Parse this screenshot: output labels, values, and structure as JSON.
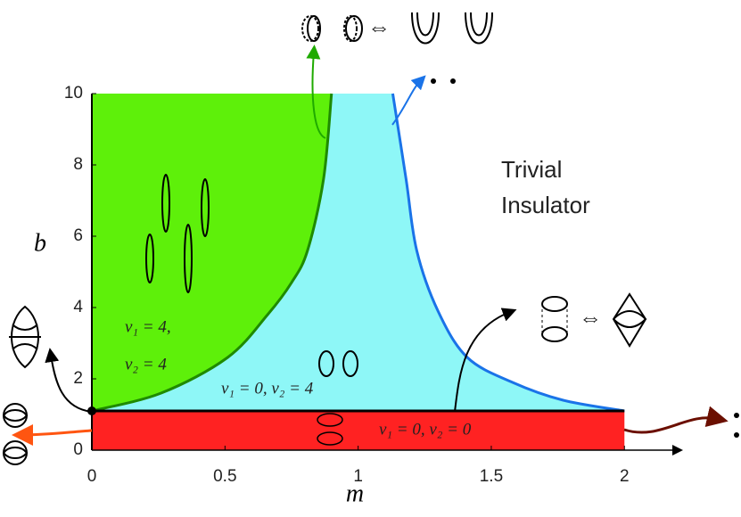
{
  "chart_data": {
    "type": "phase",
    "xlabel": "m",
    "ylabel": "b",
    "xlim": [
      0,
      2.2
    ],
    "ylim": [
      0,
      10
    ],
    "xticks": [
      0,
      0.5,
      1,
      1.5,
      2
    ],
    "yticks": [
      0,
      2,
      4,
      6,
      8,
      10
    ],
    "boundaries": [
      {
        "color": "#1f8a00",
        "x": [
          0,
          0.26,
          0.51,
          0.66,
          0.75,
          0.81,
          0.87,
          0.9
        ],
        "y": [
          1.1,
          1.6,
          2.6,
          3.8,
          4.7,
          5.6,
          7.6,
          10
        ]
      },
      {
        "color": "#1a73e8",
        "x": [
          1.13,
          1.18,
          1.22,
          1.3,
          1.41,
          1.58,
          1.77,
          2
        ],
        "y": [
          10,
          7.6,
          5.6,
          3.9,
          2.6,
          1.9,
          1.4,
          1.1
        ]
      },
      {
        "color": "#000000",
        "x": [
          0,
          2
        ],
        "y": [
          1.1,
          1.1
        ]
      }
    ],
    "fill_colors": [
      "#5ef00a",
      "#8ef7f7",
      "#ff2222"
    ],
    "annotations": [
      "Trivial",
      "Insulator",
      "ν₁ = 4,",
      "ν₂ = 4",
      "ν₁ = 0, ν₂ = 4",
      "ν₁ = 0, ν₂ = 0",
      "⇔",
      "⇔"
    ]
  }
}
